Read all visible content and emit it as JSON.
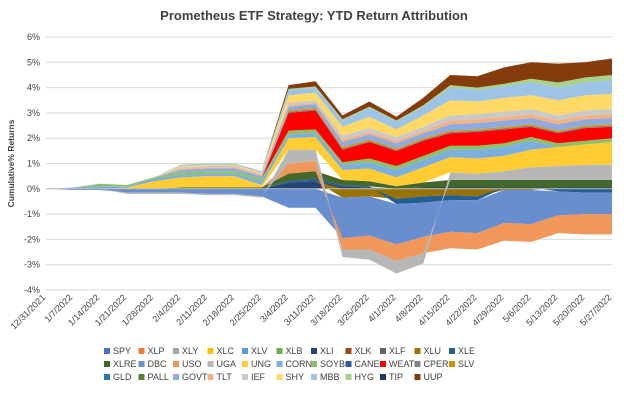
{
  "chart_data": {
    "type": "area",
    "stacked": true,
    "title": "Prometheus ETF Strategy: YTD Return Attribution",
    "ylabel": "Cumulative% Returns",
    "xlabel": "",
    "ylim": [
      -4,
      6
    ],
    "yticks": [
      "-4%",
      "-3%",
      "-2%",
      "-1%",
      "0%",
      "1%",
      "2%",
      "3%",
      "4%",
      "5%",
      "6%"
    ],
    "x": [
      "12/31/2021",
      "1/7/2022",
      "1/14/2022",
      "1/21/2022",
      "1/28/2022",
      "2/4/2022",
      "2/11/2022",
      "2/18/2022",
      "2/25/2022",
      "3/4/2022",
      "3/11/2022",
      "3/18/2022",
      "3/25/2022",
      "4/1/2022",
      "4/8/2022",
      "4/15/2022",
      "4/22/2022",
      "4/29/2022",
      "5/6/2022",
      "5/13/2022",
      "5/20/2022",
      "5/27/2022"
    ],
    "grid": true,
    "legend_position": "bottom",
    "series": [
      {
        "name": "SPY",
        "color": "#4472C4",
        "values": [
          0,
          0,
          0,
          0,
          0,
          0,
          0,
          0,
          0,
          0,
          0,
          0,
          0,
          0,
          0,
          0,
          0,
          0,
          0,
          0,
          0,
          0
        ]
      },
      {
        "name": "XLP",
        "color": "#ED7D31",
        "values": [
          0,
          0,
          0,
          0,
          0,
          0,
          0,
          0,
          0,
          0,
          0,
          0,
          0,
          0,
          0,
          0,
          0,
          0,
          0,
          0,
          0,
          0
        ]
      },
      {
        "name": "XLY",
        "color": "#A5A5A5",
        "values": [
          0,
          0,
          0,
          0,
          0,
          0,
          0,
          0,
          0,
          0,
          0,
          0,
          0,
          0,
          0,
          0,
          0,
          0,
          0,
          0,
          0,
          0
        ]
      },
      {
        "name": "XLC",
        "color": "#FFC000",
        "values": [
          0,
          0,
          0,
          0,
          0,
          0,
          0,
          0,
          0,
          0,
          0,
          0,
          0,
          0,
          0,
          0,
          0,
          0,
          0,
          0,
          0,
          0
        ]
      },
      {
        "name": "XLV",
        "color": "#5B9BD5",
        "values": [
          0,
          0,
          0,
          0,
          0,
          0,
          0,
          0,
          0,
          0,
          0,
          0,
          0,
          0,
          0,
          0,
          0,
          0,
          0,
          0,
          0,
          0
        ]
      },
      {
        "name": "XLB",
        "color": "#70AD47",
        "values": [
          0,
          0,
          0,
          0,
          0,
          0,
          0,
          0,
          0,
          0,
          0,
          0,
          0,
          0,
          0,
          0,
          0,
          0,
          0,
          0,
          0,
          0
        ]
      },
      {
        "name": "XLI",
        "color": "#264478",
        "values": [
          0,
          0,
          0,
          0,
          0,
          0,
          0,
          0,
          0,
          0.25,
          0.3,
          0.1,
          0.05,
          0,
          0.05,
          0.05,
          0.05,
          0.05,
          0.05,
          0.05,
          0.05,
          0.05
        ]
      },
      {
        "name": "XLK",
        "color": "#9E480E",
        "values": [
          0,
          0,
          0,
          0,
          0,
          0,
          0,
          0,
          0,
          0,
          0,
          0,
          0,
          0,
          0,
          0,
          0,
          0,
          0,
          0,
          0,
          0
        ]
      },
      {
        "name": "XLF",
        "color": "#636363",
        "values": [
          0,
          0,
          0,
          0,
          0,
          0,
          0,
          0,
          0,
          0,
          0,
          0,
          0,
          0,
          0,
          0,
          0,
          0,
          0,
          0,
          0,
          0
        ]
      },
      {
        "name": "XLU",
        "color": "#997300",
        "values": [
          0,
          0,
          0,
          0,
          0,
          0,
          0,
          0,
          0,
          0,
          0,
          -0.35,
          -0.3,
          -0.4,
          -0.3,
          -0.25,
          -0.3,
          -0.05,
          -0.05,
          0,
          0,
          0
        ]
      },
      {
        "name": "XLE",
        "color": "#255E91",
        "values": [
          0,
          0,
          0,
          0,
          0,
          0,
          0,
          0,
          0,
          0.05,
          0.1,
          0.05,
          0.05,
          -0.2,
          -0.25,
          -0.2,
          -0.15,
          0,
          0,
          -0.1,
          -0.15,
          -0.15
        ]
      },
      {
        "name": "XLRE",
        "color": "#43682B",
        "values": [
          0,
          0,
          0,
          0,
          0,
          0.05,
          0.05,
          0.05,
          0.05,
          0.3,
          0.3,
          0.2,
          0.2,
          0.1,
          0.2,
          0.3,
          0.3,
          0.3,
          0.3,
          0.3,
          0.3,
          0.3
        ]
      },
      {
        "name": "DBC",
        "color": "#698ED0",
        "values": [
          0,
          -0.05,
          -0.05,
          -0.15,
          -0.15,
          -0.15,
          -0.2,
          -0.2,
          -0.3,
          -0.75,
          -0.75,
          -1.6,
          -1.55,
          -1.6,
          -1.35,
          -1.25,
          -1.3,
          -1.3,
          -1.35,
          -0.95,
          -0.85,
          -0.85
        ]
      },
      {
        "name": "USO",
        "color": "#F1975A",
        "values": [
          0,
          0,
          0,
          0,
          0,
          0,
          0,
          0,
          0,
          0.4,
          0.4,
          -0.45,
          -0.55,
          -0.65,
          -0.65,
          -0.65,
          -0.65,
          -0.7,
          -0.7,
          -0.7,
          -0.8,
          -0.8
        ]
      },
      {
        "name": "UGA",
        "color": "#B7B7B7",
        "values": [
          0,
          0,
          0,
          -0.05,
          -0.05,
          -0.05,
          -0.05,
          -0.05,
          -0.05,
          0.55,
          0.45,
          -0.3,
          -0.4,
          -0.5,
          -0.4,
          0.3,
          0.25,
          0.35,
          0.5,
          0.55,
          0.6,
          0.6
        ]
      },
      {
        "name": "UNG",
        "color": "#FFCD33",
        "values": [
          0,
          0,
          0,
          0.05,
          0.3,
          0.4,
          0.45,
          0.45,
          0.1,
          0.45,
          0.5,
          0.4,
          0.5,
          0.35,
          0.6,
          0.6,
          0.6,
          0.6,
          0.7,
          0.75,
          0.8,
          0.9
        ]
      },
      {
        "name": "CORN",
        "color": "#7CAFDD",
        "values": [
          0,
          0.05,
          0.1,
          0.05,
          0.1,
          0.1,
          0.1,
          0.1,
          0.15,
          0.15,
          0.15,
          0.2,
          0.25,
          0.3,
          0.3,
          0.3,
          0.35,
          0.35,
          0.35,
          0,
          0,
          0
        ]
      },
      {
        "name": "SOYB",
        "color": "#8CC168",
        "values": [
          0,
          0,
          0.1,
          0.05,
          0.05,
          0.1,
          0.1,
          0.1,
          0.1,
          0.15,
          0.15,
          0.1,
          0.15,
          0.15,
          0.15,
          0.15,
          0.15,
          0.15,
          0.15,
          0.15,
          0.15,
          0.15
        ]
      },
      {
        "name": "CANE",
        "color": "#335AA1",
        "values": [
          0,
          0,
          0,
          0,
          0,
          0,
          0,
          0,
          0,
          0,
          0,
          0,
          0,
          0,
          0,
          0,
          0,
          0,
          0,
          0,
          0,
          0
        ]
      },
      {
        "name": "WEAT",
        "color": "#FF0000",
        "values": [
          0,
          0,
          0,
          0,
          0,
          0,
          0,
          0,
          0,
          0.7,
          0.75,
          0.5,
          0.65,
          0.6,
          0.6,
          0.5,
          0.55,
          0.55,
          0.4,
          0.4,
          0.5,
          0.45
        ]
      },
      {
        "name": "CPER",
        "color": "#848484",
        "values": [
          0,
          0,
          0,
          0,
          0,
          0,
          0,
          0,
          0,
          0.05,
          0.05,
          0.05,
          0.05,
          0.05,
          0.05,
          0.05,
          0.05,
          0.05,
          0.05,
          0.05,
          0.05,
          0.05
        ]
      },
      {
        "name": "SLV",
        "color": "#CC9A00",
        "values": [
          0,
          0,
          0,
          0,
          0,
          0,
          0,
          0,
          0,
          0.05,
          0.05,
          0.05,
          0.05,
          0.05,
          0.05,
          0.05,
          0.05,
          0.05,
          0.05,
          0.05,
          0.05,
          0.05
        ]
      },
      {
        "name": "GLD",
        "color": "#2E75B6",
        "values": [
          0,
          0,
          0,
          0,
          0,
          0,
          0,
          0,
          0,
          0,
          0,
          0,
          0,
          0,
          0,
          0,
          0,
          0,
          0,
          0,
          0,
          0
        ]
      },
      {
        "name": "PALL",
        "color": "#548235",
        "values": [
          0,
          0,
          0,
          0,
          0,
          0,
          0,
          0,
          0,
          0,
          0,
          0,
          0,
          0,
          0,
          0,
          0,
          0,
          0,
          0,
          0,
          0
        ]
      },
      {
        "name": "GOVT",
        "color": "#8FAADC",
        "values": [
          0,
          0,
          0,
          0,
          0,
          0.1,
          0.1,
          0.1,
          0.1,
          0.15,
          0.15,
          0.2,
          0.2,
          0.2,
          0.2,
          0.25,
          0.25,
          0.25,
          0.25,
          0.25,
          0.25,
          0.25
        ]
      },
      {
        "name": "TLT",
        "color": "#F4B183",
        "values": [
          0,
          0,
          0,
          0,
          0,
          0.05,
          0.05,
          0.05,
          0.05,
          0.05,
          0.05,
          0.1,
          0.1,
          0.1,
          0.1,
          0.15,
          0.15,
          0.15,
          0.15,
          0.15,
          0.15,
          0.15
        ]
      },
      {
        "name": "IEF",
        "color": "#C9C9C9",
        "values": [
          0,
          0,
          0,
          0,
          0,
          0.05,
          0.05,
          0.05,
          0.05,
          0.1,
          0.1,
          0.15,
          0.15,
          0.15,
          0.15,
          0.2,
          0.2,
          0.2,
          0.2,
          0.2,
          0.2,
          0.2
        ]
      },
      {
        "name": "SHY",
        "color": "#FFD966",
        "values": [
          0,
          0,
          0,
          0,
          0,
          0.05,
          0.05,
          0.05,
          0.05,
          0.3,
          0.3,
          0.35,
          0.45,
          0.3,
          0.45,
          0.6,
          0.5,
          0.55,
          0.55,
          0.6,
          0.6,
          0.6
        ]
      },
      {
        "name": "MBB",
        "color": "#9DC3E6",
        "values": [
          0,
          0,
          0,
          0,
          0,
          0.05,
          0.05,
          0.05,
          0.05,
          0.2,
          0.2,
          0.25,
          0.35,
          0.3,
          0.35,
          0.5,
          0.45,
          0.45,
          0.5,
          0.5,
          0.5,
          0.55
        ]
      },
      {
        "name": "HYG",
        "color": "#A9D18E",
        "values": [
          0,
          0,
          0,
          0,
          0,
          0,
          0,
          0,
          0,
          0.05,
          0.05,
          0.05,
          0.05,
          0.05,
          0.05,
          0.1,
          0.1,
          0.1,
          0.15,
          0.2,
          0.2,
          0.2
        ]
      },
      {
        "name": "TIP",
        "color": "#203864",
        "values": [
          0,
          0,
          0,
          0,
          0,
          0,
          0,
          0,
          0,
          0,
          0,
          0,
          0,
          0,
          0,
          0,
          0,
          0,
          0,
          0,
          0,
          0
        ]
      },
      {
        "name": "UUP",
        "color": "#843C0C",
        "values": [
          0,
          0,
          0,
          0,
          0,
          0,
          0,
          0,
          0,
          0.15,
          0.2,
          0.15,
          0.2,
          0.15,
          0.3,
          0.4,
          0.45,
          0.65,
          0.65,
          0.75,
          0.6,
          0.65
        ]
      }
    ]
  }
}
